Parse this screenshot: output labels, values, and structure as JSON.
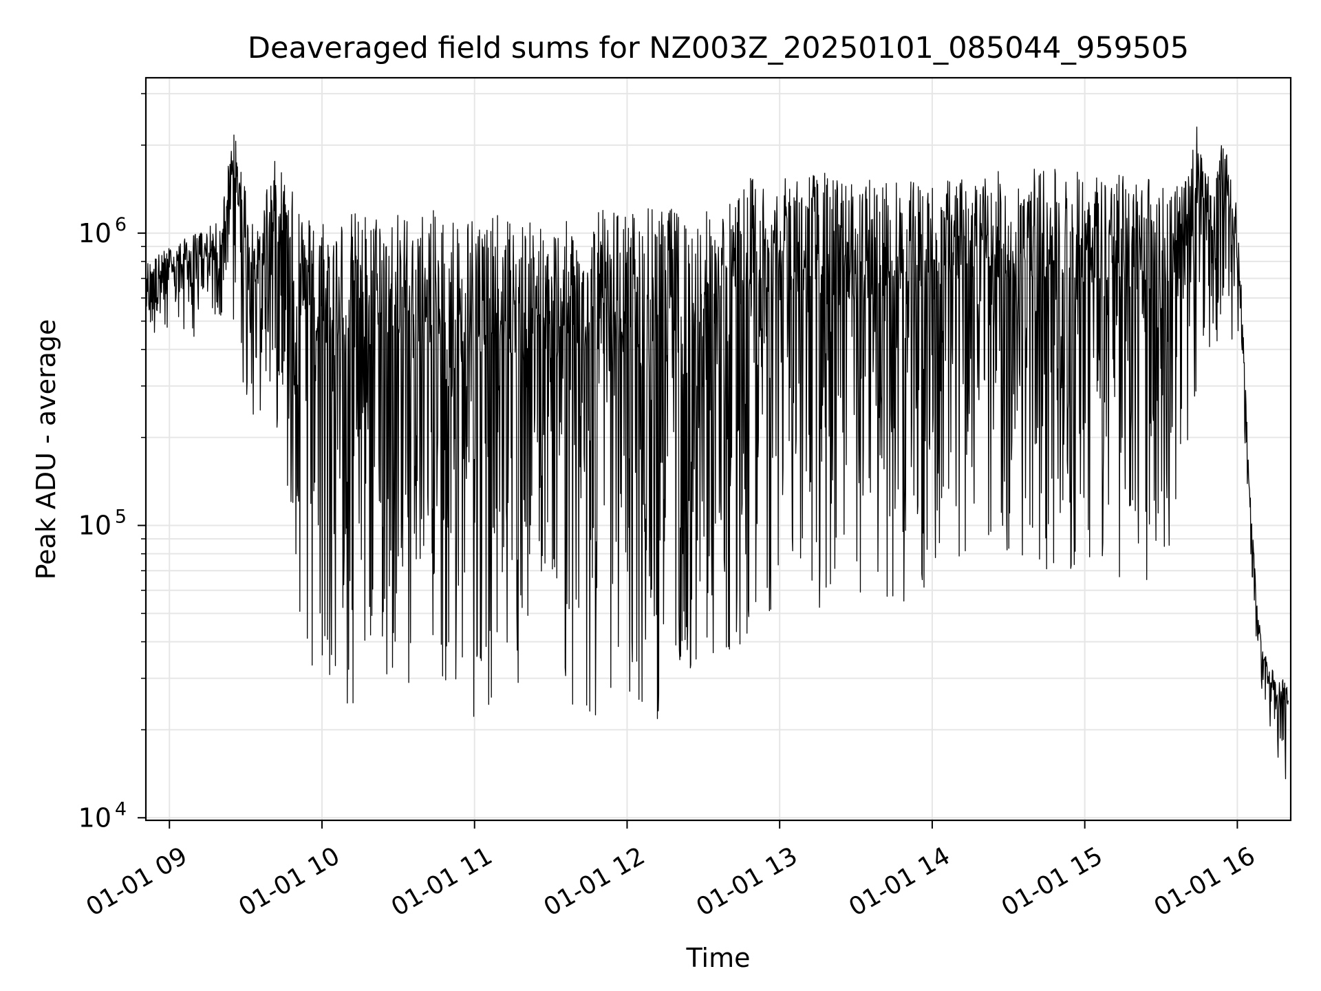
{
  "chart_data": {
    "type": "line",
    "title": "Deaveraged field sums for NZ003Z_20250101_085044_959505",
    "xlabel": "Time",
    "ylabel": "Peak ADU - average",
    "x_scale": "time",
    "y_scale": "log",
    "xlim": [
      "2025-01-01 08:50:44",
      "2025-01-01 16:21:00"
    ],
    "ylim": [
      9800,
      3400000
    ],
    "x_ticks": [
      {
        "value": "2025-01-01 09:00",
        "label": "01-01 09"
      },
      {
        "value": "2025-01-01 10:00",
        "label": "01-01 10"
      },
      {
        "value": "2025-01-01 11:00",
        "label": "01-01 11"
      },
      {
        "value": "2025-01-01 12:00",
        "label": "01-01 12"
      },
      {
        "value": "2025-01-01 13:00",
        "label": "01-01 13"
      },
      {
        "value": "2025-01-01 14:00",
        "label": "01-01 14"
      },
      {
        "value": "2025-01-01 15:00",
        "label": "01-01 15"
      },
      {
        "value": "2025-01-01 16:00",
        "label": "01-01 16"
      }
    ],
    "y_ticks": [
      {
        "value": 10000,
        "base": "10",
        "exp": "4"
      },
      {
        "value": 100000,
        "base": "10",
        "exp": "5"
      },
      {
        "value": 1000000,
        "base": "10",
        "exp": "6"
      }
    ],
    "grid": true,
    "line_color": "#000000",
    "envelope_note": "sampled series: time, upper envelope, lower envelope",
    "series": [
      {
        "time": [
          "2025-01-01 08:51",
          "2025-01-01 09:00",
          "2025-01-01 09:10",
          "2025-01-01 09:20",
          "2025-01-01 09:25",
          "2025-01-01 09:30",
          "2025-01-01 09:35",
          "2025-01-01 09:40",
          "2025-01-01 09:45",
          "2025-01-01 09:50",
          "2025-01-01 09:55",
          "2025-01-01 10:00",
          "2025-01-01 10:10",
          "2025-01-01 10:20",
          "2025-01-01 10:30",
          "2025-01-01 10:40",
          "2025-01-01 10:50",
          "2025-01-01 11:00",
          "2025-01-01 11:10",
          "2025-01-01 11:20",
          "2025-01-01 11:30",
          "2025-01-01 11:40",
          "2025-01-01 11:50",
          "2025-01-01 12:00",
          "2025-01-01 12:10",
          "2025-01-01 12:20",
          "2025-01-01 12:30",
          "2025-01-01 12:40",
          "2025-01-01 12:50",
          "2025-01-01 13:00",
          "2025-01-01 13:10",
          "2025-01-01 13:20",
          "2025-01-01 13:30",
          "2025-01-01 13:40",
          "2025-01-01 13:50",
          "2025-01-01 14:00",
          "2025-01-01 14:10",
          "2025-01-01 14:20",
          "2025-01-01 14:30",
          "2025-01-01 14:40",
          "2025-01-01 14:50",
          "2025-01-01 15:00",
          "2025-01-01 15:10",
          "2025-01-01 15:20",
          "2025-01-01 15:30",
          "2025-01-01 15:40",
          "2025-01-01 15:45",
          "2025-01-01 15:50",
          "2025-01-01 15:55",
          "2025-01-01 16:00",
          "2025-01-01 16:02",
          "2025-01-01 16:05",
          "2025-01-01 16:08",
          "2025-01-01 16:10",
          "2025-01-01 16:15",
          "2025-01-01 16:20"
        ],
        "upper": [
          800000,
          900000,
          1000000,
          1100000,
          2300000,
          1500000,
          1000000,
          1800000,
          1700000,
          1300000,
          1200000,
          1200000,
          1200000,
          1200000,
          1200000,
          1200000,
          1200000,
          1200000,
          1150000,
          1100000,
          1100000,
          1100000,
          1200000,
          1200000,
          1250000,
          1200000,
          1200000,
          1300000,
          1600000,
          1500000,
          1700000,
          1600000,
          1500000,
          1550000,
          1500000,
          1500000,
          1550000,
          1600000,
          1650000,
          1700000,
          1650000,
          1650000,
          1600000,
          1600000,
          1600000,
          1500000,
          2600000,
          1300000,
          2300000,
          1200000,
          550000,
          130000,
          50000,
          40000,
          30000,
          30000
        ],
        "lower": [
          400000,
          420000,
          440000,
          460000,
          500000,
          250000,
          200000,
          250000,
          180000,
          60000,
          30000,
          25000,
          20000,
          28000,
          30000,
          27000,
          23000,
          22000,
          24000,
          26000,
          25000,
          21000,
          20000,
          22000,
          21000,
          25000,
          28000,
          35000,
          45000,
          55000,
          50000,
          48000,
          47000,
          48000,
          52000,
          60000,
          75000,
          85000,
          80000,
          70000,
          65000,
          70000,
          62000,
          58000,
          75000,
          95000,
          350000,
          380000,
          400000,
          450000,
          300000,
          80000,
          35000,
          25000,
          15000,
          13000
        ]
      }
    ]
  }
}
